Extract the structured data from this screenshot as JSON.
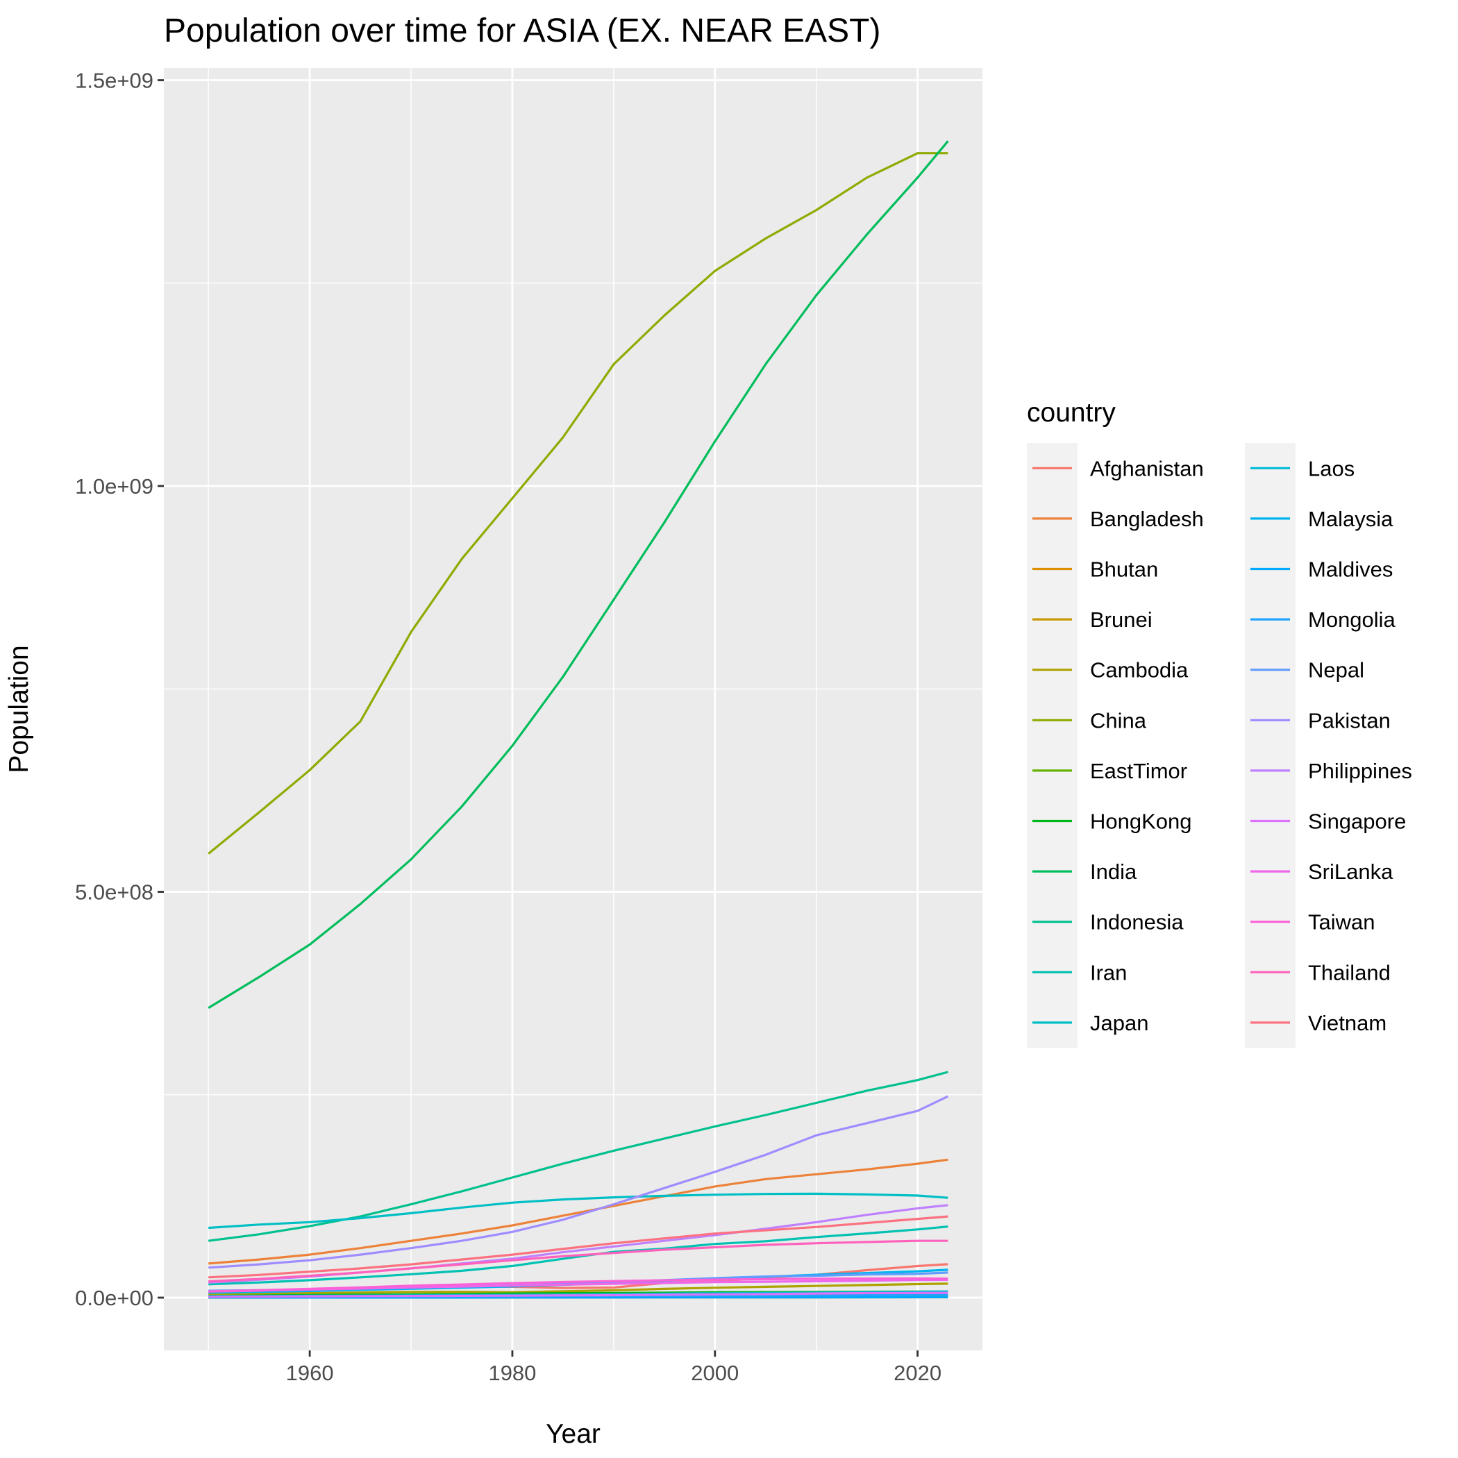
{
  "chart_data": {
    "type": "line",
    "title": "Population over time for ASIA (EX. NEAR EAST)",
    "xlabel": "Year",
    "ylabel": "Population",
    "xlim": [
      1945.6,
      2026.4
    ],
    "ylim": [
      -65000000,
      1515000000
    ],
    "x_ticks": [
      1960,
      1980,
      2000,
      2020
    ],
    "x_tick_labels": [
      "1960",
      "1980",
      "2000",
      "2020"
    ],
    "y_ticks": [
      0,
      500000000,
      1000000000,
      1500000000
    ],
    "y_tick_labels": [
      "0.0e+00",
      "5.0e+08",
      "1.0e+09",
      "1.5e+09"
    ],
    "grid": true,
    "panel_background": "#ebebeb",
    "legend": {
      "title": "country",
      "placement": "right",
      "columns": 2
    },
    "x": [
      1950,
      1955,
      1960,
      1965,
      1970,
      1975,
      1980,
      1985,
      1990,
      1995,
      2000,
      2005,
      2010,
      2015,
      2020,
      2023
    ],
    "series": [
      {
        "name": "Afghanistan",
        "color": "#F8766D",
        "values": [
          8100000,
          8900000,
          9800000,
          10900000,
          12400000,
          13800000,
          13400000,
          11900000,
          12400000,
          18100000,
          20100000,
          24400000,
          28200000,
          33800000,
          38900000,
          41200000
        ]
      },
      {
        "name": "Bangladesh",
        "color": "#EC8239",
        "values": [
          42000000,
          47000000,
          53000000,
          61000000,
          70000000,
          79000000,
          89000000,
          101000000,
          113000000,
          125000000,
          137000000,
          146000000,
          152000000,
          158000000,
          165000000,
          170000000
        ]
      },
      {
        "name": "Bhutan",
        "color": "#DB8E00",
        "values": [
          180000,
          200000,
          230000,
          260000,
          300000,
          340000,
          400000,
          460000,
          540000,
          520000,
          590000,
          660000,
          700000,
          740000,
          770000,
          790000
        ]
      },
      {
        "name": "Brunei",
        "color": "#C79800",
        "values": [
          48000,
          68000,
          82000,
          103000,
          130000,
          160000,
          193000,
          225000,
          258000,
          293000,
          330000,
          365000,
          394000,
          418000,
          440000,
          455000
        ]
      },
      {
        "name": "Cambodia",
        "color": "#AEA200",
        "values": [
          4300000,
          4900000,
          5500000,
          6300000,
          7000000,
          7100000,
          6700000,
          7800000,
          9000000,
          10800000,
          12200000,
          13400000,
          14400000,
          15500000,
          16700000,
          17200000
        ]
      },
      {
        "name": "China",
        "color": "#8FAA00",
        "values": [
          547000000,
          598000000,
          650000000,
          710000000,
          820000000,
          910000000,
          985000000,
          1060000000,
          1150000000,
          1210000000,
          1265000000,
          1305000000,
          1340000000,
          1380000000,
          1410000000,
          1410000000
        ]
      },
      {
        "name": "EastTimor",
        "color": "#64B200",
        "values": [
          430000,
          480000,
          500000,
          560000,
          610000,
          660000,
          580000,
          650000,
          740000,
          840000,
          850000,
          990000,
          1100000,
          1200000,
          1300000,
          1360000
        ]
      },
      {
        "name": "HongKong",
        "color": "#00B81B",
        "values": [
          1970000,
          2490000,
          3080000,
          3600000,
          3960000,
          4460000,
          5060000,
          5460000,
          5700000,
          6160000,
          6670000,
          6810000,
          7020000,
          7240000,
          7480000,
          7300000
        ]
      },
      {
        "name": "India",
        "color": "#00BD5C",
        "values": [
          357000000,
          395000000,
          435000000,
          485000000,
          540000000,
          605000000,
          680000000,
          765000000,
          860000000,
          955000000,
          1055000000,
          1150000000,
          1235000000,
          1310000000,
          1380000000,
          1425000000
        ]
      },
      {
        "name": "Indonesia",
        "color": "#00C08E",
        "values": [
          70000000,
          78000000,
          88000000,
          100000000,
          115000000,
          131000000,
          148000000,
          165000000,
          181000000,
          196000000,
          211000000,
          225000000,
          240000000,
          255000000,
          268000000,
          278000000
        ]
      },
      {
        "name": "Iran",
        "color": "#00C1B2",
        "values": [
          16400000,
          18700000,
          21500000,
          25000000,
          28800000,
          33000000,
          39000000,
          47800000,
          56400000,
          60300000,
          66100000,
          69500000,
          74600000,
          79100000,
          84000000,
          87600000
        ]
      },
      {
        "name": "Japan",
        "color": "#00BFC4",
        "values": [
          86000000,
          90000000,
          93000000,
          98000000,
          104000000,
          111000000,
          117000000,
          121000000,
          123500000,
          125400000,
          126800000,
          127700000,
          128000000,
          127100000,
          125800000,
          123000000
        ]
      },
      {
        "name": "Laos",
        "color": "#00BBDA",
        "values": [
          1700000,
          1900000,
          2200000,
          2400000,
          2700000,
          3000000,
          3250000,
          3650000,
          4200000,
          4800000,
          5300000,
          5700000,
          6200000,
          6700000,
          7200000,
          7600000
        ]
      },
      {
        "name": "Malaysia",
        "color": "#00B4EF",
        "values": [
          6100000,
          7000000,
          8200000,
          9500000,
          10900000,
          12300000,
          13800000,
          15700000,
          18200000,
          20700000,
          23400000,
          25700000,
          28200000,
          30300000,
          32400000,
          34300000
        ]
      },
      {
        "name": "Maldives",
        "color": "#00A9FF",
        "values": [
          74000,
          84000,
          92000,
          105000,
          120000,
          136000,
          158000,
          185000,
          220000,
          245000,
          280000,
          310000,
          365000,
          410000,
          515000,
          525000
        ]
      },
      {
        "name": "Mongolia",
        "color": "#20A4FF",
        "values": [
          780000,
          860000,
          950000,
          1100000,
          1250000,
          1450000,
          1650000,
          1900000,
          2150000,
          2300000,
          2400000,
          2550000,
          2700000,
          3000000,
          3300000,
          3450000
        ]
      },
      {
        "name": "Nepal",
        "color": "#619CFF",
        "values": [
          8500000,
          9200000,
          10000000,
          11000000,
          12200000,
          13600000,
          15000000,
          16800000,
          19000000,
          21600000,
          24000000,
          26000000,
          27000000,
          28600000,
          29300000,
          30900000
        ]
      },
      {
        "name": "Pakistan",
        "color": "#9F8CFF",
        "values": [
          37000000,
          41000000,
          46000000,
          53000000,
          61000000,
          70000000,
          81000000,
          96000000,
          115000000,
          135000000,
          155000000,
          176000000,
          200000000,
          215000000,
          230000000,
          248000000
        ]
      },
      {
        "name": "Philippines",
        "color": "#BF80FF",
        "values": [
          18500000,
          22000000,
          26000000,
          31000000,
          36000000,
          42000000,
          48000000,
          56000000,
          63000000,
          70000000,
          77000000,
          85000000,
          93000000,
          102000000,
          110000000,
          114000000
        ]
      },
      {
        "name": "Singapore",
        "color": "#DB72FB",
        "values": [
          1020000,
          1300000,
          1640000,
          1890000,
          2070000,
          2260000,
          2410000,
          2740000,
          3050000,
          3520000,
          4030000,
          4270000,
          5080000,
          5540000,
          5690000,
          5920000
        ]
      },
      {
        "name": "SriLanka",
        "color": "#EE67EB",
        "values": [
          7500000,
          8600000,
          9900000,
          11200000,
          12500000,
          13700000,
          14700000,
          16000000,
          17000000,
          18100000,
          19100000,
          19600000,
          20200000,
          20900000,
          21700000,
          21900000
        ]
      },
      {
        "name": "Taiwan",
        "color": "#FB61D7",
        "values": [
          7600000,
          9100000,
          10800000,
          12600000,
          14700000,
          16200000,
          17800000,
          19300000,
          20400000,
          21300000,
          22200000,
          22800000,
          23200000,
          23500000,
          23600000,
          23400000
        ]
      },
      {
        "name": "Thailand",
        "color": "#FF62BC",
        "values": [
          20000000,
          23000000,
          27000000,
          31000000,
          36000000,
          41000000,
          46000000,
          51000000,
          55000000,
          59000000,
          62000000,
          65000000,
          67000000,
          68500000,
          70000000,
          70000000
        ]
      },
      {
        "name": "Vietnam",
        "color": "#FC717F",
        "values": [
          25000000,
          28000000,
          32000000,
          36000000,
          41000000,
          47000000,
          53000000,
          60000000,
          67000000,
          73000000,
          79000000,
          83000000,
          87000000,
          92000000,
          97000000,
          100000000
        ]
      }
    ]
  }
}
